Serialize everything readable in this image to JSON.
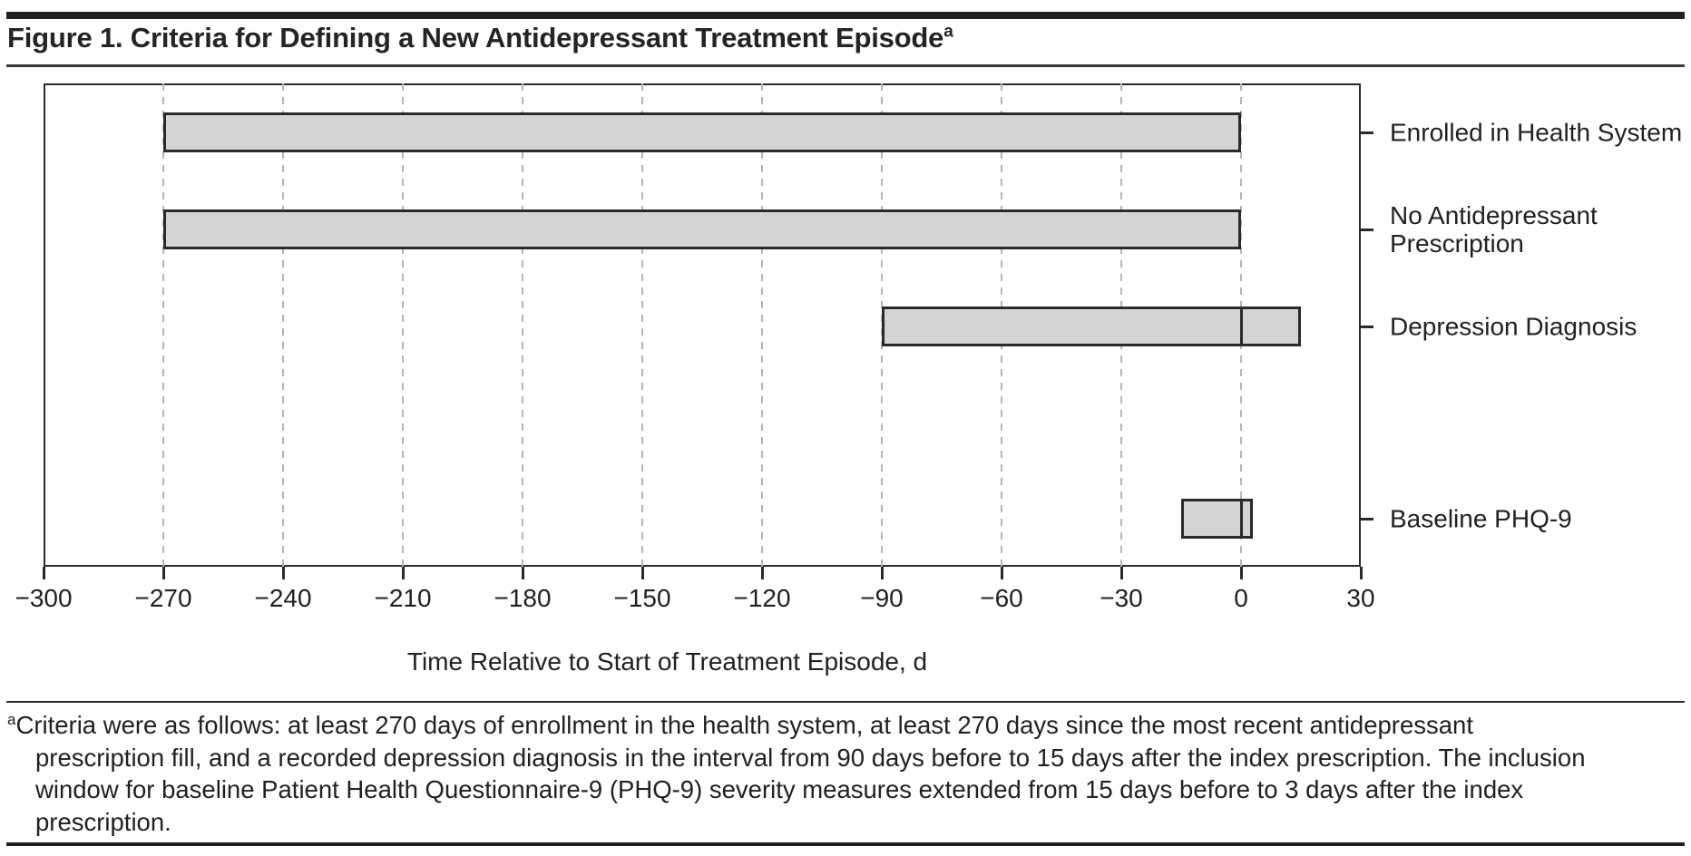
{
  "figure": {
    "title": "Figure 1. Criteria for Defining a New Antidepressant Treatment Episode",
    "title_superscript": "a"
  },
  "chart_data": {
    "type": "bar",
    "subtype": "horizontal-interval",
    "title": "Figure 1. Criteria for Defining a New Antidepressant Treatment Episode",
    "xlabel": "Time Relative to Start of Treatment Episode, d",
    "ylabel": "",
    "xlim": [
      -300,
      30
    ],
    "grid": true,
    "legend": false,
    "xtick_values": [
      -300,
      -270,
      -240,
      -210,
      -180,
      -150,
      -120,
      -90,
      -60,
      -30,
      0,
      30
    ],
    "xtick_labels": [
      "−300",
      "−270",
      "−240",
      "−210",
      "−180",
      "−150",
      "−120",
      "−90",
      "−60",
      "−30",
      "0",
      "30"
    ],
    "gridline_values": [
      -270,
      -240,
      -210,
      -180,
      -150,
      -120,
      -90,
      -60,
      -30,
      0
    ],
    "categories": [
      {
        "name": "Enrolled in Health System",
        "label_lines": [
          "Enrolled in Health System"
        ],
        "start": -270,
        "end": 0
      },
      {
        "name": "No Antidepressant Prescription",
        "label_lines": [
          "No Antidepressant",
          "Prescription"
        ],
        "start": -270,
        "end": 0
      },
      {
        "name": "Depression Diagnosis",
        "label_lines": [
          "Depression Diagnosis"
        ],
        "start": -90,
        "end": 15,
        "divider_at": 0
      },
      {
        "name": "Baseline PHQ-9",
        "label_lines": [
          "Baseline PHQ-9"
        ],
        "start": -15,
        "end": 3,
        "divider_at": 0
      }
    ],
    "colors": {
      "bar_fill": "#d4d4d4",
      "bar_border": "#2b2a2a",
      "gridline": "#b5b5b5",
      "axis": "#2b2a2a",
      "text": "#232020"
    }
  },
  "footnote": {
    "superscript": "a",
    "lines": [
      "Criteria were as follows: at least 270 days of enrollment in the health system, at least 270 days since the most recent antidepressant",
      "prescription fill, and a recorded depression diagnosis in the interval from 90 days before to 15 days after the index prescription. The inclusion",
      "window for baseline Patient Health Questionnaire-9 (PHQ-9) severity measures extended from 15 days before to 3 days after the index",
      "prescription."
    ]
  }
}
